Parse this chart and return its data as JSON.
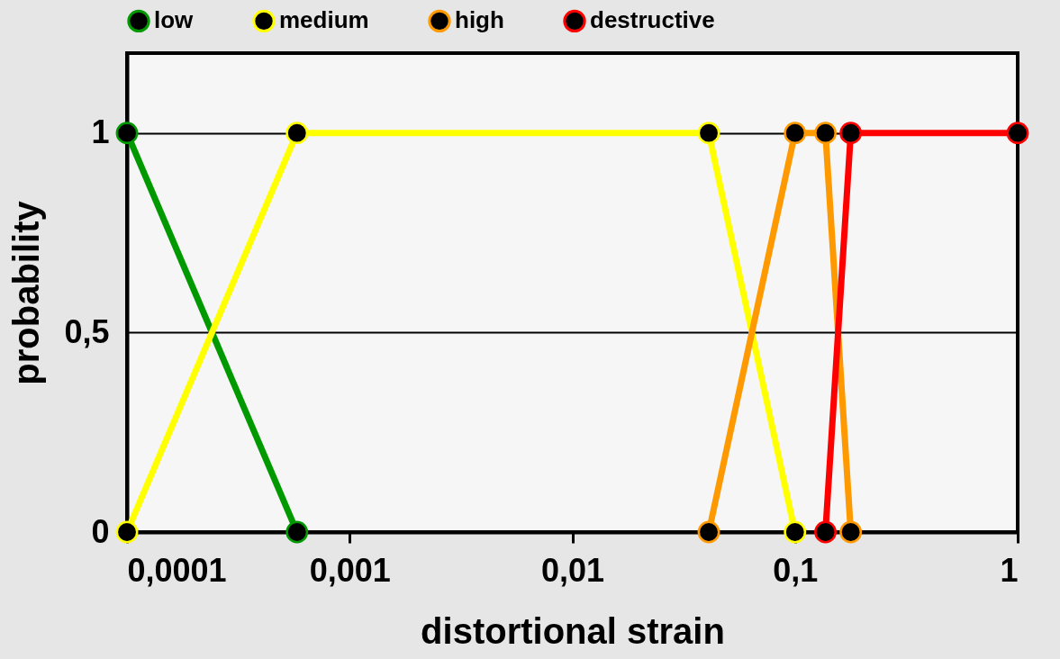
{
  "chart_data": {
    "type": "line",
    "xlabel": "distortional strain",
    "ylabel": "probability",
    "log": "x",
    "xlim": [
      0.0001,
      1
    ],
    "ylim": [
      0,
      1.2
    ],
    "xticks": [
      {
        "value": 0.0001,
        "label": "0,0001"
      },
      {
        "value": 0.001,
        "label": "0,001"
      },
      {
        "value": 0.01,
        "label": "0,01"
      },
      {
        "value": 0.1,
        "label": "0,1"
      },
      1
    ],
    "yticks": [
      0,
      {
        "value": 0.5,
        "label": "0,5"
      },
      1
    ],
    "grid": "y",
    "legend": "top",
    "marker": "circle",
    "line_style": "solid",
    "series": [
      {
        "name": "low",
        "color": "#009900",
        "x": [
          0.0001,
          0.00058
        ],
        "values": [
          1,
          0
        ]
      },
      {
        "name": "medium",
        "color": "#ffff00",
        "x": [
          0.0001,
          0.00058,
          0.041,
          0.1
        ],
        "values": [
          0,
          1,
          1,
          0
        ]
      },
      {
        "name": "high",
        "color": "#ff9900",
        "x": [
          0.041,
          0.1,
          0.137,
          0.178
        ],
        "values": [
          0,
          1,
          1,
          0
        ]
      },
      {
        "name": "destructive",
        "color": "#ff0000",
        "x": [
          0.137,
          0.178,
          1
        ],
        "values": [
          0,
          1,
          1
        ]
      }
    ]
  }
}
